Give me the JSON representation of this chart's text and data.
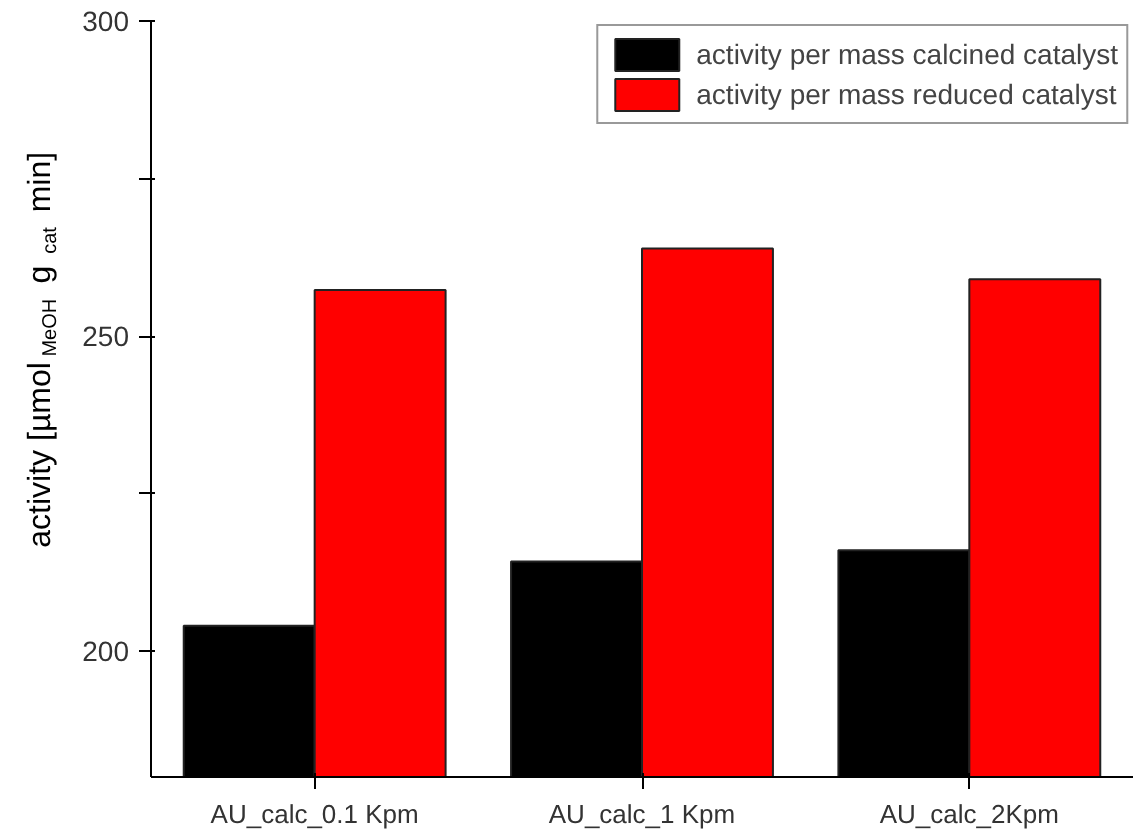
{
  "chart_data": {
    "type": "bar",
    "ylabel": "activity [µmol$_{MeOH}$ g$_{cat}$ min]",
    "categories": [
      "AU_calc_0.1 Kpm",
      "AU_calc_1 Kpm",
      "AU_calc_2Kpm"
    ],
    "series": [
      {
        "name": "activity per mass calcined catalyst",
        "color": "#000000",
        "values": [
          204,
          214.2,
          216
        ]
      },
      {
        "name": "activity per mass reduced catalyst",
        "color": "#ff0000",
        "values": [
          257.3,
          263.9,
          259
        ]
      }
    ],
    "ylim": [
      180,
      300
    ],
    "yticks": [
      200,
      {
        "value": 225,
        "label": null
      },
      250,
      {
        "value": 275,
        "label": null
      },
      300
    ],
    "grid": false,
    "legend": "top right"
  }
}
